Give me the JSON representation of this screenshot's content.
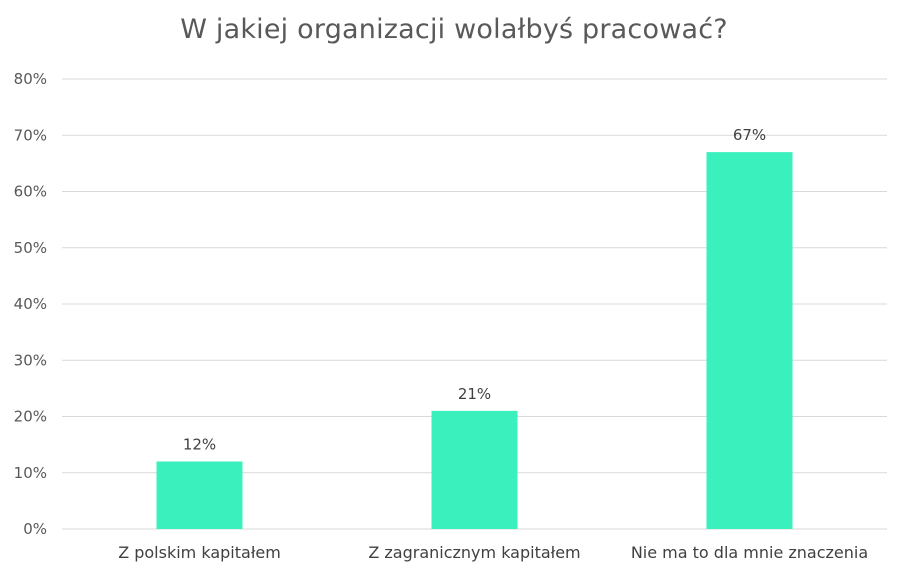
{
  "chart_data": {
    "type": "bar",
    "title": "W jakiej organizacji wolałbyś pracować?",
    "categories": [
      "Z polskim kapitałem",
      "Z zagranicznym kapitałem",
      "Nie ma to dla mnie znaczenia"
    ],
    "values": [
      12,
      21,
      67
    ],
    "data_labels": [
      "12%",
      "21%",
      "67%"
    ],
    "ylim": [
      0,
      80
    ],
    "yticks": [
      0,
      10,
      20,
      30,
      40,
      50,
      60,
      70,
      80
    ],
    "ytick_labels": [
      "0%",
      "10%",
      "20%",
      "30%",
      "40%",
      "50%",
      "60%",
      "70%",
      "80%"
    ],
    "grid": true,
    "legend": "none",
    "colors": {
      "bar": "#3AF0BC",
      "grid": "#D9D9D9",
      "text": "#595959"
    }
  }
}
